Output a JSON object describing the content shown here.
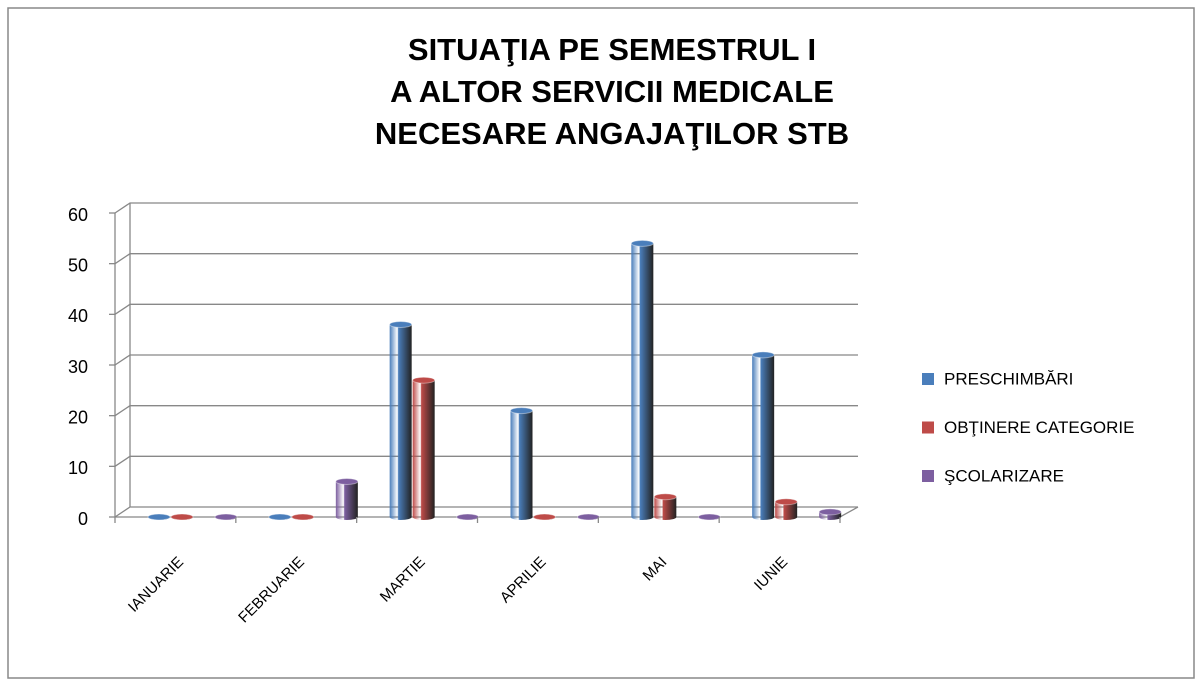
{
  "chart_data": {
    "type": "bar",
    "title": [
      "SITUAŢIA PE SEMESTRUL I",
      "A ALTOR SERVICII MEDICALE",
      "NECESARE ANGAJAŢILOR STB"
    ],
    "categories": [
      "IANUARIE",
      "FEBRUARIE",
      "MARTIE",
      "APRILIE",
      "MAI",
      "IUNIE"
    ],
    "series": [
      {
        "name": "PRESCHIMBĂRI",
        "color": "#4a7ebb",
        "values": [
          0,
          0,
          38,
          21,
          54,
          32
        ]
      },
      {
        "name": "OBŢINERE CATEGORIE",
        "color": "#be4b48",
        "values": [
          0,
          0,
          27,
          0,
          4,
          3
        ]
      },
      {
        "name": "ŞCOLARIZARE",
        "color": "#7d5fa0",
        "values": [
          0,
          7,
          0,
          0,
          0,
          1
        ]
      }
    ],
    "ylim": [
      0,
      60
    ],
    "yticks": [
      0,
      10,
      20,
      30,
      40,
      50,
      60
    ],
    "grid": true,
    "legend": "right"
  }
}
